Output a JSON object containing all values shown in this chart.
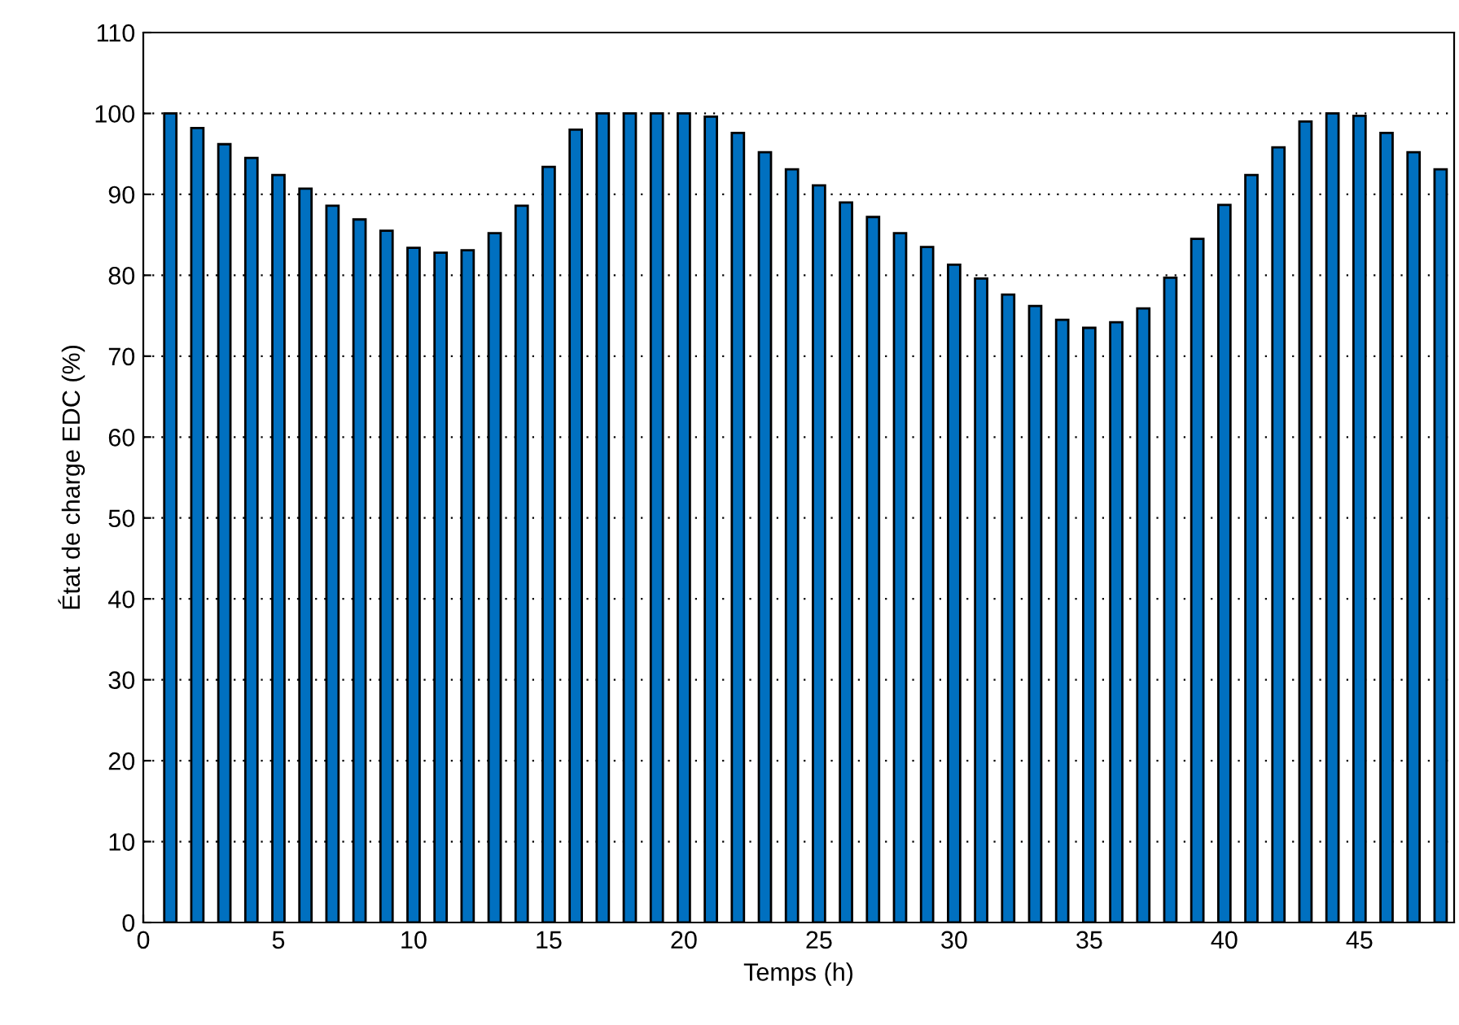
{
  "chart_data": {
    "type": "bar",
    "xlabel": "Temps (h)",
    "ylabel": "État de charge EDC (%)",
    "x": [
      1,
      2,
      3,
      4,
      5,
      6,
      7,
      8,
      9,
      10,
      11,
      12,
      13,
      14,
      15,
      16,
      17,
      18,
      19,
      20,
      21,
      22,
      23,
      24,
      25,
      26,
      27,
      28,
      29,
      30,
      31,
      32,
      33,
      34,
      35,
      36,
      37,
      38,
      39,
      40,
      41,
      42,
      43,
      44,
      45,
      46,
      47,
      48
    ],
    "values": [
      100,
      98.2,
      96.2,
      94.5,
      92.4,
      90.7,
      88.6,
      86.9,
      85.5,
      83.4,
      82.8,
      83.1,
      85.2,
      88.6,
      93.4,
      98,
      100,
      100,
      100,
      100,
      99.6,
      97.6,
      95.2,
      93.1,
      91.1,
      89,
      87.2,
      85.2,
      83.5,
      81.3,
      79.6,
      77.6,
      76.2,
      74.5,
      73.5,
      74.2,
      75.9,
      79.7,
      84.5,
      88.7,
      92.4,
      95.8,
      99,
      100,
      99.7,
      97.6,
      95.2,
      93.1
    ],
    "color": "#0070c0",
    "xlim": [
      0,
      48.5
    ],
    "xticks": [
      0,
      5,
      10,
      15,
      20,
      25,
      30,
      35,
      40,
      45
    ],
    "ylim": [
      0,
      110
    ],
    "yticks": [
      0,
      10,
      20,
      30,
      40,
      50,
      60,
      70,
      80,
      90,
      100,
      110
    ],
    "grid": "y"
  }
}
